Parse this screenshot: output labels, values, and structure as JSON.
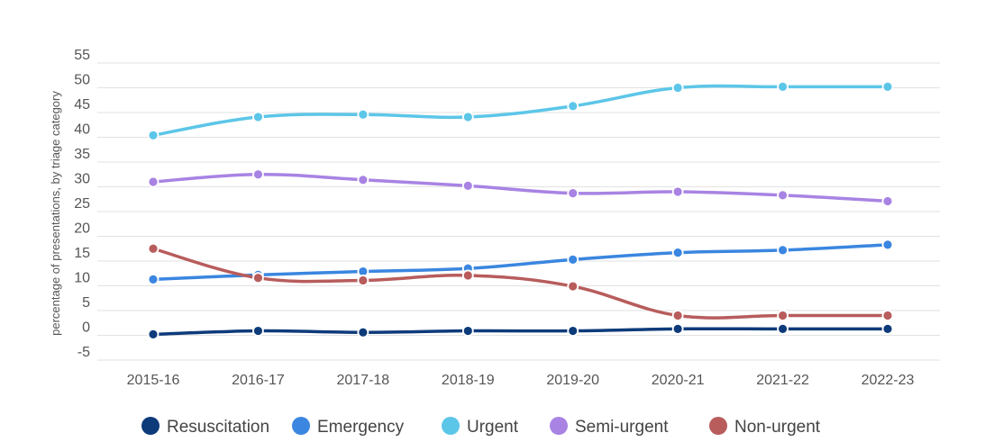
{
  "chart_data": {
    "type": "line",
    "title": "",
    "xlabel": "",
    "ylabel": "percentage of presentations, by triage category",
    "categories": [
      "2015-16",
      "2016-17",
      "2017-18",
      "2018-19",
      "2019-20",
      "2020-21",
      "2021-22",
      "2022-23"
    ],
    "ylim": [
      -5,
      55
    ],
    "yticks": [
      -5,
      0,
      5,
      10,
      15,
      20,
      25,
      30,
      35,
      40,
      45,
      50,
      55
    ],
    "grid": true,
    "legend_position": "bottom",
    "series": [
      {
        "name": "Resuscitation",
        "color": "#0d3b7a",
        "values": [
          0.2,
          0.9,
          0.6,
          0.9,
          0.9,
          1.3,
          1.3,
          1.3
        ]
      },
      {
        "name": "Emergency",
        "color": "#3a86e0",
        "values": [
          11.3,
          12.2,
          12.9,
          13.5,
          15.3,
          16.7,
          17.2,
          18.3
        ]
      },
      {
        "name": "Urgent",
        "color": "#5cc6e8",
        "values": [
          40.4,
          44.1,
          44.6,
          44.1,
          46.3,
          50.0,
          50.2,
          50.2
        ]
      },
      {
        "name": "Semi-urgent",
        "color": "#a883e3",
        "values": [
          31.0,
          32.5,
          31.4,
          30.2,
          28.7,
          29.0,
          28.3,
          27.1
        ]
      },
      {
        "name": "Non-urgent",
        "color": "#b85c5c",
        "values": [
          17.5,
          11.6,
          11.1,
          12.1,
          9.9,
          4.0,
          4.0,
          4.0
        ]
      }
    ]
  }
}
